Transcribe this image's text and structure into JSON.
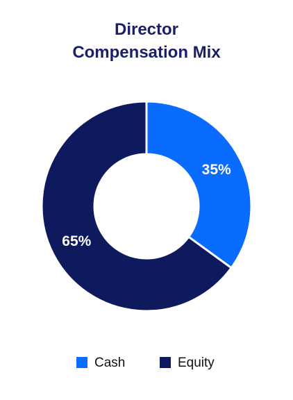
{
  "chart_data": {
    "type": "donut",
    "title": "Director Compensation Mix",
    "categories": [
      "Cash",
      "Equity"
    ],
    "values": [
      35,
      65
    ],
    "value_labels": [
      "35%",
      "65%"
    ],
    "colors": [
      "#0a6cff",
      "#0f1a5e"
    ],
    "legend": "bottom"
  }
}
